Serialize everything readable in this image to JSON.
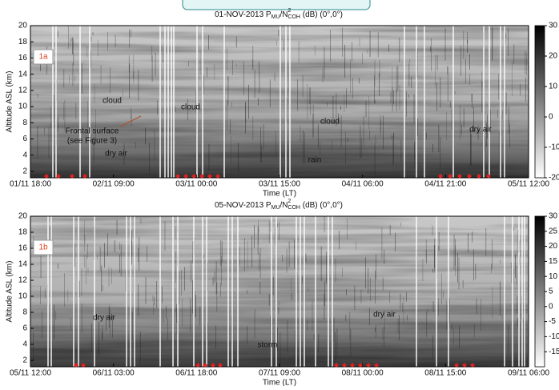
{
  "chart_data": [
    {
      "type": "heatmap",
      "title": {
        "prefix": "01-NOV-2013 P",
        "sub1": "MU",
        "mid": "/N",
        "sup": "2",
        "sub2": "COH",
        "suffix": " (dB) (0°,0°)"
      },
      "panel_label": "1a",
      "xlabel": "Time (LT)",
      "ylabel": "Altitude ASL (km)",
      "xticks": [
        "01/11 18:00",
        "02/11 09:00",
        "03/11 00:00",
        "03/11 15:00",
        "04/11 06:00",
        "04/11 21:00",
        "05/11 12:00"
      ],
      "ylim": [
        1.2,
        20
      ],
      "yticks": [
        2,
        4,
        6,
        8,
        10,
        12,
        14,
        16,
        18,
        20
      ],
      "colorbar": {
        "lim": [
          -20,
          30
        ],
        "ticks": [
          -20,
          -10,
          0,
          10,
          20,
          30
        ]
      },
      "annotations": [
        "cloud",
        "cloud",
        "Frontal surface",
        "(see Figure 3)",
        "dry air",
        "cloud",
        "rain",
        "dry air"
      ]
    },
    {
      "type": "heatmap",
      "title": {
        "prefix": "05-NOV-2013 P",
        "sub1": "MU",
        "mid": "/N",
        "sup": "2",
        "sub2": "COH",
        "suffix": " (dB) (0°,0°)"
      },
      "panel_label": "1b",
      "xlabel": "Time (LT)",
      "ylabel": "Altitude ASL (km)",
      "xticks": [
        "05/11 12:00",
        "06/11 03:00",
        "06/11 18:00",
        "07/11 09:00",
        "08/11 00:00",
        "08/11 15:00",
        "09/11 06:00"
      ],
      "ylim": [
        1.2,
        20
      ],
      "yticks": [
        2,
        4,
        6,
        8,
        10,
        12,
        14,
        16,
        18,
        20
      ],
      "colorbar": {
        "lim": [
          -20,
          30
        ],
        "ticks": [
          -15,
          -10,
          -5,
          0,
          5,
          10,
          15,
          20,
          25,
          30
        ]
      },
      "annotations": [
        "dry air",
        "storm",
        "dry air"
      ]
    }
  ]
}
